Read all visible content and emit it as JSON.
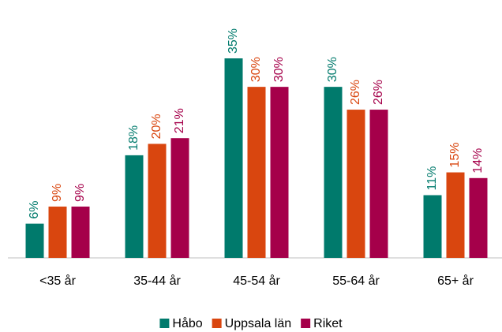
{
  "chart_data": {
    "type": "bar",
    "categories": [
      "<35 år",
      "35-44 år",
      "45-54 år",
      "55-64 år",
      "65+ år"
    ],
    "series": [
      {
        "name": "Håbo",
        "color": "#007a6c",
        "values": [
          6,
          18,
          35,
          30,
          11
        ],
        "value_labels": [
          "6%",
          "18%",
          "35%",
          "30%",
          "11%"
        ]
      },
      {
        "name": "Uppsala län",
        "color": "#d9460f",
        "values": [
          9,
          20,
          30,
          26,
          15
        ],
        "value_labels": [
          "9%",
          "20%",
          "30%",
          "26%",
          "15%"
        ]
      },
      {
        "name": "Riket",
        "color": "#a5004a",
        "values": [
          9,
          21,
          30,
          26,
          14
        ],
        "value_labels": [
          "9%",
          "21%",
          "30%",
          "26%",
          "14%"
        ]
      }
    ],
    "legend": "bottom"
  }
}
